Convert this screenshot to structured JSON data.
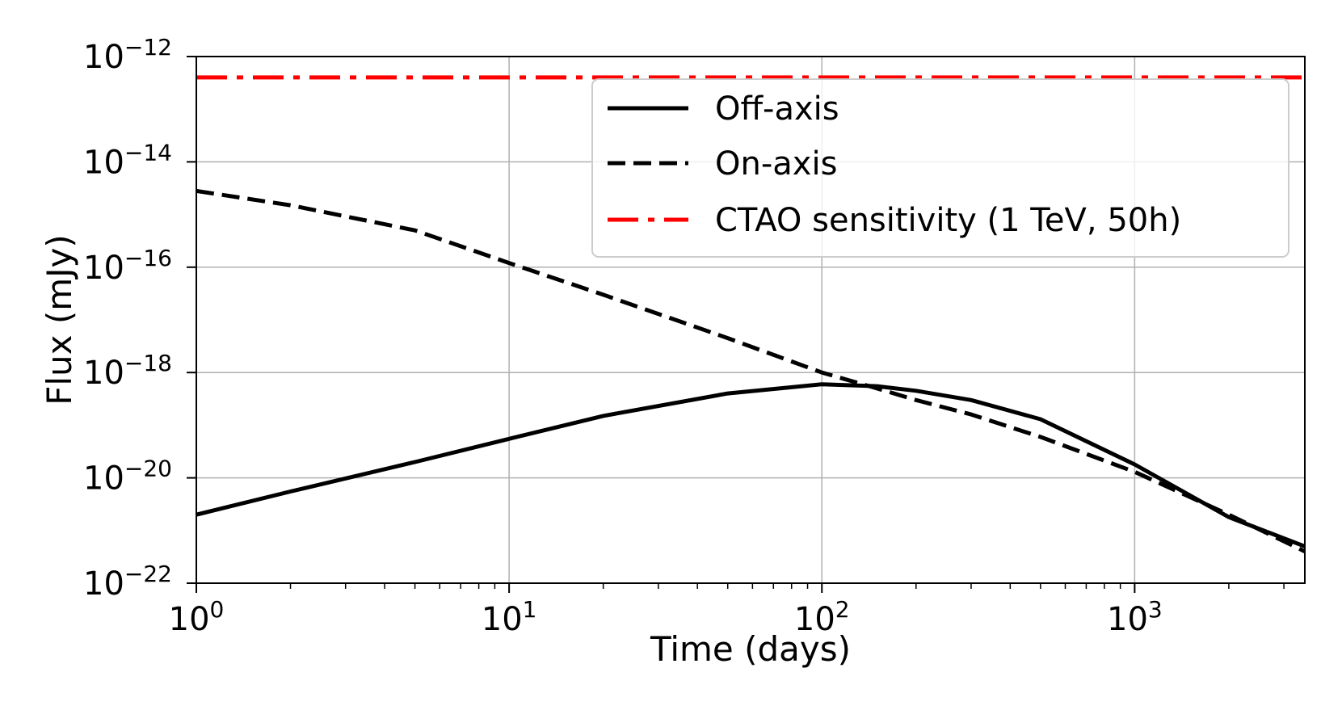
{
  "chart_data": {
    "type": "line",
    "title": "",
    "xlabel": "Time (days)",
    "ylabel": "Flux (mJy)",
    "xscale": "log",
    "yscale": "log",
    "xlim": [
      1,
      3500
    ],
    "ylim": [
      1e-22,
      1e-12
    ],
    "grid": true,
    "legend_position": "upper right",
    "x_ticks": [
      {
        "value": 1,
        "base": "10",
        "exp": "0"
      },
      {
        "value": 10,
        "base": "10",
        "exp": "1"
      },
      {
        "value": 100,
        "base": "10",
        "exp": "2"
      },
      {
        "value": 1000,
        "base": "10",
        "exp": "3"
      }
    ],
    "y_ticks": [
      {
        "value": 1e-22,
        "base": "10",
        "exp": "−22"
      },
      {
        "value": 1e-20,
        "base": "10",
        "exp": "−20"
      },
      {
        "value": 1e-18,
        "base": "10",
        "exp": "−18"
      },
      {
        "value": 1e-16,
        "base": "10",
        "exp": "−16"
      },
      {
        "value": 1e-14,
        "base": "10",
        "exp": "−14"
      },
      {
        "value": 1e-12,
        "base": "10",
        "exp": "−12"
      }
    ],
    "series": [
      {
        "name": "Off-axis",
        "style": "solid",
        "color": "#000000",
        "x": [
          1,
          2,
          5,
          10,
          20,
          50,
          100,
          150,
          200,
          300,
          500,
          1000,
          2000,
          3500
        ],
        "y": [
          2e-21,
          5.5e-21,
          2e-20,
          5.5e-20,
          1.5e-19,
          4e-19,
          6e-19,
          5.5e-19,
          4.5e-19,
          3e-19,
          1.3e-19,
          1.8e-20,
          1.8e-21,
          5e-22
        ]
      },
      {
        "name": "On-axis",
        "style": "dashed",
        "color": "#000000",
        "x": [
          1,
          2,
          5,
          10,
          20,
          50,
          100,
          150,
          200,
          300,
          500,
          1000,
          2000,
          3500
        ],
        "y": [
          2.8e-15,
          1.5e-15,
          5e-16,
          1.2e-16,
          3e-17,
          4.5e-18,
          1e-18,
          5e-19,
          3e-19,
          1.6e-19,
          6e-20,
          1.3e-20,
          2e-21,
          4e-22
        ]
      },
      {
        "name": "CTAO sensitivity (1 TeV, 50h)",
        "style": "dashdot",
        "color": "#ff0000",
        "x": [
          1,
          3500
        ],
        "y": [
          4e-13,
          4e-13
        ]
      }
    ]
  }
}
